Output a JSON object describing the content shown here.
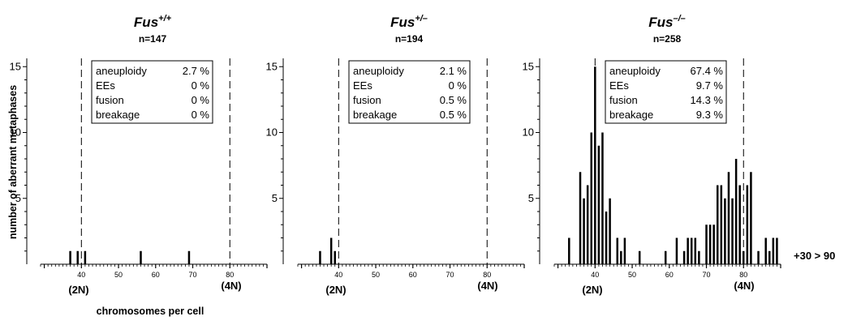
{
  "figure": {
    "ylabel": "number of aberrant metaphases",
    "xlabel": "chromosomes per cell",
    "overflow_label": "+30 > 90",
    "ploidy_labels": [
      "(2N)",
      "(4N)"
    ]
  },
  "chart_data": [
    {
      "type": "bar",
      "title": "Fus",
      "title_sup": "+/+",
      "subtitle": "n=147",
      "x_ticks": [
        40,
        50,
        60,
        70,
        80
      ],
      "y_ticks": [
        5,
        10,
        15
      ],
      "xlim": [
        29,
        90
      ],
      "ylim": [
        0,
        16
      ],
      "ploidy_markers": [
        40,
        80
      ],
      "x": [
        37,
        39,
        41,
        56,
        69
      ],
      "values": [
        1,
        1,
        1,
        1,
        1
      ],
      "stats": [
        {
          "label": "aneuploidy",
          "value": "2.7 %"
        },
        {
          "label": "EEs",
          "value": "0 %"
        },
        {
          "label": "fusion",
          "value": "0 %"
        },
        {
          "label": "breakage",
          "value": "0 %"
        }
      ]
    },
    {
      "type": "bar",
      "title": "Fus",
      "title_sup": "+/–",
      "subtitle": "n=194",
      "x_ticks": [
        40,
        50,
        60,
        70,
        80
      ],
      "y_ticks": [
        5,
        10,
        15
      ],
      "xlim": [
        29,
        90
      ],
      "ylim": [
        0,
        16
      ],
      "ploidy_markers": [
        40,
        80
      ],
      "x": [
        35,
        38,
        39
      ],
      "values": [
        1,
        2,
        1
      ],
      "stats": [
        {
          "label": "aneuploidy",
          "value": "2.1 %"
        },
        {
          "label": "EEs",
          "value": "0 %"
        },
        {
          "label": "fusion",
          "value": "0.5 %"
        },
        {
          "label": "breakage",
          "value": "0.5 %"
        }
      ]
    },
    {
      "type": "bar",
      "title": "Fus",
      "title_sup": "–/–",
      "subtitle": "n=258",
      "x_ticks": [
        40,
        50,
        60,
        70,
        80
      ],
      "y_ticks": [
        5,
        10,
        15
      ],
      "xlim": [
        29,
        90
      ],
      "ylim": [
        0,
        16
      ],
      "ploidy_markers": [
        40,
        80
      ],
      "x": [
        33,
        36,
        37,
        38,
        39,
        40,
        41,
        42,
        43,
        44,
        46,
        47,
        48,
        52,
        59,
        62,
        64,
        65,
        66,
        67,
        68,
        70,
        71,
        72,
        73,
        74,
        75,
        76,
        77,
        78,
        79,
        80,
        81,
        82,
        84,
        86,
        87,
        88,
        89
      ],
      "values": [
        2,
        7,
        5,
        6,
        10,
        15,
        9,
        10,
        4,
        5,
        2,
        1,
        2,
        1,
        1,
        2,
        1,
        2,
        2,
        2,
        1,
        3,
        3,
        3,
        6,
        6,
        5,
        7,
        5,
        8,
        6,
        1,
        6,
        7,
        1,
        2,
        1,
        2,
        2
      ],
      "stats": [
        {
          "label": "aneuploidy",
          "value": "67.4 %"
        },
        {
          "label": "EEs",
          "value": "9.7 %"
        },
        {
          "label": "fusion",
          "value": "14.3 %"
        },
        {
          "label": "breakage",
          "value": "9.3 %"
        }
      ]
    }
  ]
}
